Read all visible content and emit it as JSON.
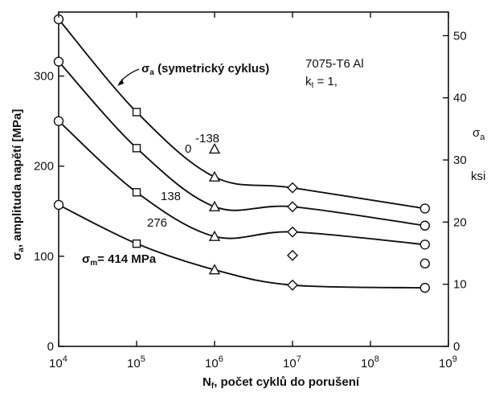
{
  "chart_data": {
    "type": "line",
    "x_scale": "log",
    "xlim": [
      10000,
      1000000000
    ],
    "ylim": [
      0,
      371
    ],
    "ylim_right": [
      0,
      53.8
    ],
    "xlabel_main": "N",
    "xlabel_sub": "f",
    "xlabel_rest": ", počet cyklů do porušení",
    "ylabel_left_sigma": "σ",
    "ylabel_left_sub": "a",
    "ylabel_left_rest": ", amplituda napětí [MPa]",
    "ylabel_right_sigma": "σ",
    "ylabel_right_sub": "a",
    "ylabel_right_unit": "ksi",
    "x_ticks": [
      {
        "value": 10000,
        "base": "10",
        "exp": "4"
      },
      {
        "value": 100000,
        "base": "10",
        "exp": "5"
      },
      {
        "value": 1000000,
        "base": "10",
        "exp": "6"
      },
      {
        "value": 10000000,
        "base": "10",
        "exp": "7"
      },
      {
        "value": 100000000,
        "base": "10",
        "exp": "8"
      },
      {
        "value": 1000000000,
        "base": "10",
        "exp": "9"
      }
    ],
    "y_ticks_left": [
      0,
      100,
      200,
      300
    ],
    "y_ticks_right": [
      0,
      10,
      20,
      30,
      40,
      50
    ],
    "annotation_symmetric": {
      "sigma": "σ",
      "sub": "a",
      "rest": " (symetrický cyklus)"
    },
    "material": "7075-T6 Al",
    "kt": {
      "k": "k",
      "sub": "t",
      "rest": " = 1,"
    },
    "series": [
      {
        "label": "-138",
        "points": [
          [
            1000000,
            219
          ]
        ],
        "markers": [
          "triangle"
        ]
      },
      {
        "label": "",
        "points": [
          [
            10000,
            363
          ],
          [
            100000,
            260
          ],
          [
            1000000,
            188
          ],
          [
            10000000,
            176
          ],
          [
            500000000,
            153
          ]
        ],
        "markers": [
          "circle",
          "square",
          "triangle",
          "diamond",
          "circle"
        ]
      },
      {
        "label": "0",
        "points": [
          [
            10000,
            316
          ],
          [
            100000,
            220
          ],
          [
            1000000,
            155
          ],
          [
            10000000,
            155
          ],
          [
            500000000,
            134
          ]
        ],
        "markers": [
          "circle",
          "square",
          "triangle",
          "diamond",
          "circle"
        ]
      },
      {
        "label": "138",
        "points": [
          [
            10000,
            250
          ],
          [
            100000,
            171
          ],
          [
            1000000,
            122
          ],
          [
            10000000,
            127
          ],
          [
            500000000,
            113
          ]
        ],
        "markers": [
          "circle",
          "square",
          "triangle",
          "diamond",
          "circle"
        ]
      },
      {
        "label": "276",
        "points": [
          [
            10000,
            157
          ],
          [
            100000,
            114
          ],
          [
            1000000,
            85
          ],
          [
            10000000,
            101
          ],
          [
            500000000,
            92
          ]
        ],
        "markers": [
          "circle",
          "square",
          "triangle",
          "diamond",
          "circle"
        ]
      },
      {
        "label": "σm= 414 MPa",
        "label_sigma": "σ",
        "label_sub": "m",
        "label_rest": "= 414 MPa",
        "points": [
          [
            10000,
            157
          ],
          [
            100000,
            114
          ],
          [
            1000000,
            85
          ],
          [
            10000000,
            68
          ],
          [
            500000000,
            65
          ]
        ],
        "markers": [
          "circle",
          "square",
          "triangle",
          "diamond",
          "circle"
        ]
      }
    ]
  }
}
